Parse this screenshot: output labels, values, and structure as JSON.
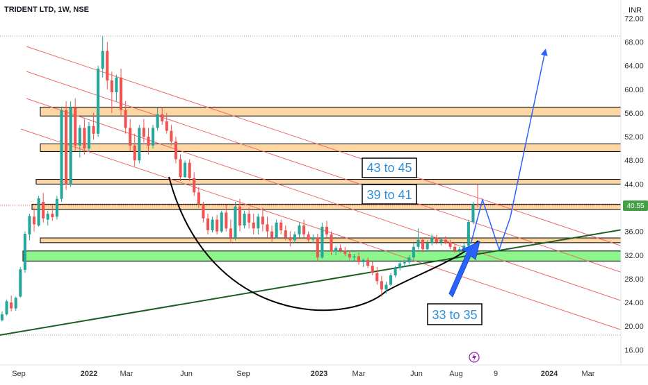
{
  "header": {
    "title": "TRIDENT LTD, 1W, NSE",
    "currency": "INR"
  },
  "colors": {
    "up": "#26a69a",
    "down": "#ef5350",
    "zone_orange": "#fcd7a4",
    "zone_green": "#8cf58c",
    "channel": "#ef6a6a",
    "trend": "#1b5e20",
    "projection": "#2962ff",
    "price_tag": "#43a047",
    "annotation": "#2f8fd8"
  },
  "chart_data": {
    "type": "candlestick",
    "symbol": "TRIDENT LTD",
    "interval": "1W",
    "exchange": "NSE",
    "currency": "INR",
    "ylim": [
      14,
      74
    ],
    "y_ticks": [
      16,
      20,
      24,
      28,
      32,
      36,
      40,
      44,
      48,
      52,
      56,
      60,
      64,
      68,
      72
    ],
    "y_tick_labels": [
      "16.00",
      "20.00",
      "24.00",
      "28.00",
      "32.00",
      "36.00",
      "40.00",
      "44.00",
      "48.00",
      "52.00",
      "56.00",
      "60.00",
      "64.00",
      "68.00",
      "72.00"
    ],
    "x_tick_labels": [
      "Sep",
      "2022",
      "Mar",
      "Jun",
      "Sep",
      "2023",
      "Mar",
      "Jun",
      "Aug",
      "9",
      "2024",
      "Mar"
    ],
    "last_price": "40.55",
    "candles": [
      [
        21.0,
        22.5,
        20.8,
        22.0
      ],
      [
        22.0,
        24.5,
        21.8,
        24.2
      ],
      [
        24.0,
        25.2,
        22.5,
        23.0
      ],
      [
        23.0,
        25.0,
        22.6,
        24.8
      ],
      [
        25.0,
        30.0,
        24.8,
        29.6
      ],
      [
        29.5,
        36.0,
        29.0,
        35.6
      ],
      [
        35.5,
        39.0,
        34.5,
        38.6
      ],
      [
        38.5,
        40.0,
        36.0,
        37.2
      ],
      [
        37.0,
        42.0,
        36.8,
        41.6
      ],
      [
        41.0,
        42.5,
        37.5,
        38.2
      ],
      [
        38.0,
        39.5,
        37.0,
        39.0
      ],
      [
        39.0,
        40.5,
        37.8,
        38.4
      ],
      [
        38.5,
        42.0,
        38.0,
        41.5
      ],
      [
        41.5,
        57.0,
        41.0,
        56.5
      ],
      [
        56.5,
        58.0,
        43.0,
        44.0
      ],
      [
        44.0,
        58.0,
        43.5,
        57.0
      ],
      [
        57.0,
        58.5,
        49.5,
        50.5
      ],
      [
        50.5,
        54.0,
        48.5,
        53.5
      ],
      [
        53.5,
        55.0,
        49.0,
        50.0
      ],
      [
        50.0,
        54.5,
        49.5,
        53.8
      ],
      [
        53.8,
        56.0,
        51.5,
        52.5
      ],
      [
        52.5,
        64.0,
        52.0,
        63.5
      ],
      [
        63.5,
        69.0,
        62.0,
        66.5
      ],
      [
        66.5,
        68.0,
        60.0,
        61.5
      ],
      [
        61.5,
        63.0,
        56.0,
        59.5
      ],
      [
        59.5,
        62.5,
        58.0,
        62.0
      ],
      [
        62.0,
        63.5,
        55.5,
        56.5
      ],
      [
        56.5,
        58.0,
        52.5,
        53.5
      ],
      [
        53.5,
        55.0,
        49.5,
        50.5
      ],
      [
        50.5,
        52.5,
        47.0,
        48.0
      ],
      [
        48.0,
        54.0,
        47.5,
        53.5
      ],
      [
        53.5,
        55.0,
        51.0,
        52.0
      ],
      [
        52.0,
        53.5,
        49.0,
        50.5
      ],
      [
        50.5,
        54.0,
        50.0,
        53.5
      ],
      [
        53.5,
        57.0,
        53.0,
        55.8
      ],
      [
        55.8,
        57.0,
        54.0,
        54.6
      ],
      [
        54.6,
        56.0,
        52.5,
        53.0
      ],
      [
        53.0,
        54.0,
        50.5,
        51.2
      ],
      [
        51.2,
        52.0,
        47.5,
        48.2
      ],
      [
        48.2,
        49.0,
        44.5,
        45.2
      ],
      [
        45.2,
        48.0,
        45.0,
        47.6
      ],
      [
        47.6,
        48.2,
        44.5,
        45.0
      ],
      [
        45.0,
        46.0,
        42.0,
        42.6
      ],
      [
        42.6,
        43.5,
        40.0,
        40.6
      ],
      [
        40.6,
        41.0,
        37.5,
        38.2
      ],
      [
        38.2,
        39.0,
        35.5,
        36.2
      ],
      [
        36.2,
        38.5,
        35.8,
        38.0
      ],
      [
        38.0,
        38.8,
        35.5,
        36.0
      ],
      [
        36.0,
        39.5,
        35.8,
        39.2
      ],
      [
        39.2,
        40.5,
        36.0,
        36.5
      ],
      [
        36.5,
        38.0,
        34.0,
        35.0
      ],
      [
        35.0,
        41.0,
        34.5,
        40.2
      ],
      [
        40.2,
        41.5,
        36.0,
        37.0
      ],
      [
        37.0,
        39.5,
        36.5,
        39.0
      ],
      [
        39.0,
        40.0,
        36.5,
        37.5
      ],
      [
        37.5,
        39.0,
        35.5,
        36.5
      ],
      [
        36.5,
        39.0,
        35.5,
        38.5
      ],
      [
        38.5,
        40.0,
        36.0,
        37.2
      ],
      [
        37.2,
        38.5,
        35.0,
        36.0
      ],
      [
        36.0,
        37.0,
        34.0,
        35.0
      ],
      [
        35.0,
        38.0,
        34.8,
        37.5
      ],
      [
        37.5,
        38.0,
        35.5,
        36.2
      ],
      [
        36.2,
        37.0,
        34.5,
        35.0
      ],
      [
        35.0,
        36.0,
        33.5,
        34.5
      ],
      [
        34.5,
        36.0,
        34.0,
        35.5
      ],
      [
        35.5,
        37.5,
        35.0,
        37.0
      ],
      [
        37.0,
        38.0,
        35.0,
        35.5
      ],
      [
        35.5,
        36.0,
        34.0,
        34.6
      ],
      [
        34.6,
        35.5,
        34.0,
        35.0
      ],
      [
        35.0,
        35.6,
        31.0,
        31.6
      ],
      [
        31.6,
        37.5,
        31.4,
        36.8
      ],
      [
        36.8,
        37.8,
        35.0,
        35.5
      ],
      [
        35.5,
        36.0,
        32.0,
        32.6
      ],
      [
        32.6,
        33.5,
        32.0,
        33.2
      ],
      [
        33.2,
        33.8,
        32.4,
        32.8
      ],
      [
        32.8,
        33.4,
        31.8,
        32.2
      ],
      [
        32.2,
        32.8,
        31.2,
        31.6
      ],
      [
        31.6,
        32.2,
        31.0,
        31.8
      ],
      [
        31.8,
        32.4,
        30.4,
        30.8
      ],
      [
        30.8,
        31.4,
        30.0,
        31.2
      ],
      [
        31.2,
        31.6,
        29.8,
        30.2
      ],
      [
        30.2,
        31.0,
        28.6,
        29.0
      ],
      [
        29.0,
        30.0,
        27.0,
        27.6
      ],
      [
        27.6,
        28.5,
        25.0,
        26.2
      ],
      [
        26.2,
        27.5,
        25.5,
        27.0
      ],
      [
        27.0,
        29.0,
        26.8,
        28.6
      ],
      [
        28.6,
        30.2,
        28.2,
        29.8
      ],
      [
        29.8,
        31.0,
        29.4,
        30.6
      ],
      [
        30.6,
        31.2,
        30.0,
        30.8
      ],
      [
        30.8,
        32.0,
        30.4,
        31.6
      ],
      [
        31.6,
        34.0,
        31.2,
        33.4
      ],
      [
        33.4,
        36.5,
        33.0,
        34.6
      ],
      [
        34.6,
        35.0,
        32.5,
        33.0
      ],
      [
        33.0,
        34.5,
        32.6,
        34.0
      ],
      [
        34.0,
        35.5,
        33.6,
        35.0
      ],
      [
        35.0,
        35.4,
        33.8,
        34.2
      ],
      [
        34.2,
        35.0,
        33.6,
        34.6
      ],
      [
        34.6,
        35.2,
        33.8,
        34.0
      ],
      [
        34.0,
        34.6,
        33.0,
        33.4
      ],
      [
        33.4,
        33.8,
        32.4,
        32.8
      ],
      [
        32.8,
        33.4,
        32.2,
        33.0
      ],
      [
        33.0,
        34.0,
        32.6,
        33.6
      ],
      [
        33.6,
        38.0,
        33.4,
        37.6
      ],
      [
        37.6,
        41.0,
        37.2,
        40.6
      ],
      [
        40.6,
        44.0,
        40.0,
        40.55
      ]
    ],
    "zones_orange": [
      [
        55.5,
        57.0
      ],
      [
        49.5,
        50.8
      ],
      [
        44.0,
        44.8
      ],
      [
        39.7,
        40.6
      ],
      [
        34.1,
        34.9
      ]
    ],
    "zone_green": [
      31.0,
      32.7
    ],
    "annotations": [
      "43 to 45",
      "39 to 41",
      "33 to 35"
    ]
  }
}
